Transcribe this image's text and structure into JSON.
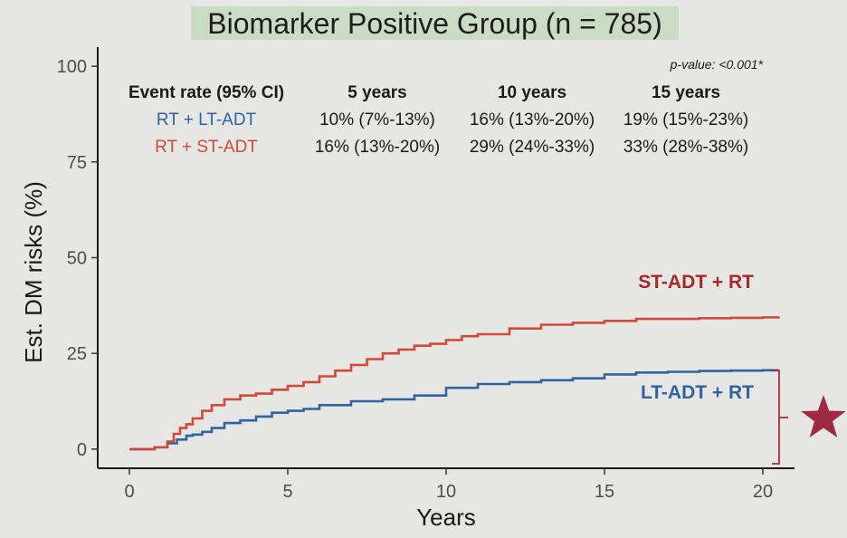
{
  "title": "Biomarker Positive Group (n = 785)",
  "colors": {
    "lt_adt": "#2f64a0",
    "st_adt": "#d24a37",
    "st_label": "#a82a28",
    "star": "#9e2a44",
    "bracket": "#a8303c",
    "title_bg": "#cbdcc4"
  },
  "chart_data": {
    "type": "line",
    "title": "Biomarker Positive Group (n = 785)",
    "xlabel": "Years",
    "ylabel": "Est. DM risks (%)",
    "xlim": [
      -1,
      21
    ],
    "ylim": [
      -5,
      105
    ],
    "xticks": [
      0,
      5,
      10,
      15,
      20
    ],
    "yticks": [
      0,
      25,
      50,
      75,
      100
    ],
    "grid": false,
    "step": true,
    "series": [
      {
        "name": "RT + LT-ADT",
        "curve_label": "LT-ADT + RT",
        "color": "#2f64a0",
        "x": [
          0,
          0.8,
          1.2,
          1.5,
          1.8,
          2.0,
          2.3,
          2.6,
          3.0,
          3.5,
          4.0,
          4.5,
          5.0,
          5.5,
          6.0,
          7.0,
          8.0,
          9.0,
          10.0,
          11.0,
          12.0,
          13.0,
          14.0,
          15.0,
          16.0,
          17.0,
          18.0,
          19.0,
          20.0,
          20.5
        ],
        "y": [
          0,
          0.5,
          1.5,
          2.5,
          3.5,
          3.8,
          4.5,
          5.5,
          6.8,
          7.5,
          8.5,
          9.5,
          10,
          10.5,
          11.5,
          12.5,
          13,
          14,
          16,
          17,
          17.5,
          18,
          18.5,
          19.5,
          20,
          20.2,
          20.4,
          20.5,
          20.6,
          20.6
        ]
      },
      {
        "name": "RT + ST-ADT",
        "curve_label": "ST-ADT + RT",
        "color": "#d24a37",
        "x": [
          0,
          0.8,
          1.2,
          1.4,
          1.6,
          1.8,
          2.0,
          2.3,
          2.6,
          3.0,
          3.5,
          4.0,
          4.5,
          5.0,
          5.5,
          6.0,
          6.5,
          7.0,
          7.5,
          8.0,
          8.5,
          9.0,
          9.5,
          10.0,
          10.5,
          11.0,
          12.0,
          13.0,
          14.0,
          15.0,
          16.0,
          17.0,
          18.0,
          19.0,
          20.0,
          20.5
        ],
        "y": [
          0,
          0.5,
          2,
          4,
          5.5,
          6.5,
          8,
          10,
          11.5,
          13,
          14,
          14.5,
          15.5,
          16.5,
          17.5,
          19,
          20.5,
          22,
          23.5,
          25,
          26,
          27,
          27.5,
          28.5,
          29.5,
          30,
          31.5,
          32.5,
          33,
          33.5,
          34,
          34,
          34.2,
          34.3,
          34.4,
          34.6
        ]
      }
    ],
    "annotations": {
      "p_value": "p-value: <0.001*"
    },
    "table": {
      "headers": [
        "Event rate (95% CI)",
        "5 years",
        "10 years",
        "15 years"
      ],
      "rows": [
        {
          "label": "RT + LT-ADT",
          "values": [
            "10% (7%-13%)",
            "16% (13%-20%)",
            "19% (15%-23%)"
          ]
        },
        {
          "label": "RT + ST-ADT",
          "values": [
            "16% (13%-20%)",
            "29% (24%-33%)",
            "33% (28%-38%)"
          ]
        }
      ]
    }
  }
}
